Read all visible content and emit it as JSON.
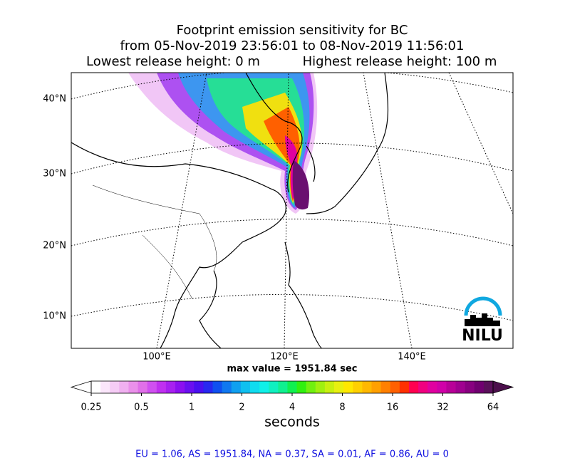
{
  "header": {
    "title": "Footprint emission sensitivity for BC",
    "subtitle": "from 05-Nov-2019 23:56:01 to 08-Nov-2019 11:56:01",
    "lowest_release": "Lowest release height: 0 m",
    "highest_release": "Highest release height: 100 m"
  },
  "map": {
    "lat_labels": [
      "40°N",
      "30°N",
      "20°N",
      "10°N"
    ],
    "lon_labels": [
      "100°E",
      "120°E",
      "140°E"
    ],
    "max_value": "max value = 1951.84 sec",
    "logo": "NILU"
  },
  "colorbar": {
    "log_scale": true,
    "lim": [
      0.25,
      64
    ],
    "ticks": [
      0.25,
      0.5,
      1,
      2,
      4,
      8,
      16,
      32,
      64
    ],
    "label": "seconds",
    "under_color": "#ffffff",
    "over_color": "#4b0f4b",
    "colors": [
      "#ffffff",
      "#fbe6fb",
      "#f6ccf6",
      "#f0b0f0",
      "#ea90ea",
      "#e070e8",
      "#d050f0",
      "#c030f0",
      "#a820f0",
      "#8c10f0",
      "#6a10f0",
      "#4a10f0",
      "#2828f0",
      "#1050f0",
      "#1078f0",
      "#10a0f0",
      "#10c0f0",
      "#10dcf0",
      "#10f0e8",
      "#10f0c0",
      "#10f090",
      "#10f050",
      "#30f010",
      "#70f010",
      "#a0f010",
      "#c8f010",
      "#e8f010",
      "#ffe800",
      "#ffd000",
      "#ffb800",
      "#ffa000",
      "#ff8000",
      "#ff6000",
      "#ff3000",
      "#ff0050",
      "#f00080",
      "#e000a0",
      "#d000a8",
      "#b80098",
      "#a00090",
      "#880080",
      "#700070",
      "#5a105a"
    ]
  },
  "footer": {
    "stats": "EU = 1.06,  AS = 1951.84,  NA = 0.37,  SA = 0.01,  AF = 0.86,  AU = 0"
  }
}
